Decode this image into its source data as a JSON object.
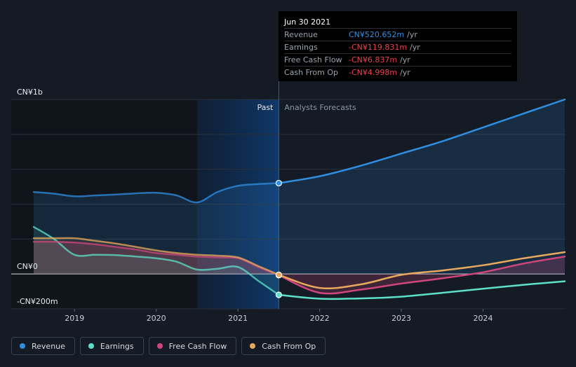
{
  "chart_data": {
    "type": "line",
    "x_ticks": [
      "2019",
      "2020",
      "2021",
      "2022",
      "2023",
      "2024"
    ],
    "y_ticks": [
      {
        "label": "CN¥1b",
        "value": 1000
      },
      {
        "label": "CN¥0",
        "value": 0
      },
      {
        "label": "-CN¥200m",
        "value": -200
      }
    ],
    "ylim": [
      -200,
      1000
    ],
    "xlim": [
      2018.5,
      2025.0
    ],
    "divider_x": 2021.5,
    "past_label": "Past",
    "forecast_label": "Analysts Forecasts",
    "highlight_start_x": 2020.5,
    "grid": true,
    "legend_position": "bottom-left",
    "series": [
      {
        "name": "Revenue",
        "color": "#2f8ee0",
        "fill": true,
        "x": [
          2018.5,
          2018.75,
          2019.0,
          2019.25,
          2019.5,
          2019.75,
          2020.0,
          2020.25,
          2020.5,
          2020.75,
          2021.0,
          2021.25,
          2021.5
        ],
        "y": [
          470,
          460,
          445,
          450,
          455,
          462,
          465,
          450,
          410,
          470,
          505,
          515,
          520.652
        ],
        "forecast_x": [
          2021.5,
          2022.0,
          2022.5,
          2023.0,
          2023.5,
          2024.0,
          2024.5,
          2025.0
        ],
        "forecast_y": [
          520.652,
          560,
          620,
          690,
          760,
          840,
          920,
          1000
        ]
      },
      {
        "name": "Earnings",
        "color": "#5ce0c8",
        "fill": false,
        "x": [
          2018.5,
          2018.75,
          2019.0,
          2019.25,
          2019.5,
          2019.75,
          2020.0,
          2020.25,
          2020.5,
          2020.75,
          2021.0,
          2021.25,
          2021.5
        ],
        "y": [
          270,
          200,
          110,
          110,
          108,
          100,
          90,
          70,
          25,
          30,
          40,
          -40,
          -119.831
        ],
        "forecast_x": [
          2021.5,
          2022.0,
          2022.5,
          2023.0,
          2023.5,
          2024.0,
          2024.5,
          2025.0
        ],
        "forecast_y": [
          -119.831,
          -142,
          -140,
          -130,
          -108,
          -85,
          -62,
          -42
        ]
      },
      {
        "name": "Free Cash Flow",
        "color": "#d0467c",
        "fill": true,
        "x": [
          2018.5,
          2018.75,
          2019.0,
          2019.25,
          2019.5,
          2019.75,
          2020.0,
          2020.25,
          2020.5,
          2020.75,
          2021.0,
          2021.25,
          2021.5
        ],
        "y": [
          185,
          185,
          180,
          170,
          155,
          140,
          120,
          110,
          100,
          95,
          90,
          40,
          -6.837
        ],
        "forecast_x": [
          2021.5,
          2022.0,
          2022.5,
          2023.0,
          2023.5,
          2024.0,
          2024.5,
          2025.0
        ],
        "forecast_y": [
          -6.837,
          -108,
          -90,
          -55,
          -25,
          10,
          60,
          100
        ]
      },
      {
        "name": "Cash From Op",
        "color": "#e9a95c",
        "fill": false,
        "x": [
          2018.5,
          2018.75,
          2019.0,
          2019.25,
          2019.5,
          2019.75,
          2020.0,
          2020.25,
          2020.5,
          2020.75,
          2021.0,
          2021.25,
          2021.5
        ],
        "y": [
          205,
          205,
          205,
          190,
          175,
          155,
          135,
          120,
          110,
          105,
          95,
          45,
          -4.998
        ],
        "forecast_x": [
          2021.5,
          2022.0,
          2022.5,
          2023.0,
          2023.5,
          2024.0,
          2024.5,
          2025.0
        ],
        "forecast_y": [
          -4.998,
          -80,
          -60,
          -5,
          20,
          50,
          90,
          125
        ]
      }
    ]
  },
  "tooltip": {
    "date": "Jun 30 2021",
    "rows": [
      {
        "label": "Revenue",
        "value": "CN¥520.652m",
        "unit": "/yr",
        "color": "#2f8ee0"
      },
      {
        "label": "Earnings",
        "value": "-CN¥119.831m",
        "unit": "/yr",
        "color": "#e8414b"
      },
      {
        "label": "Free Cash Flow",
        "value": "-CN¥6.837m",
        "unit": "/yr",
        "color": "#e8414b"
      },
      {
        "label": "Cash From Op",
        "value": "-CN¥4.998m",
        "unit": "/yr",
        "color": "#e8414b"
      }
    ]
  },
  "legend": [
    {
      "label": "Revenue",
      "color": "#2f8ee0"
    },
    {
      "label": "Earnings",
      "color": "#5ce0c8"
    },
    {
      "label": "Free Cash Flow",
      "color": "#d0467c"
    },
    {
      "label": "Cash From Op",
      "color": "#e9a95c"
    }
  ]
}
